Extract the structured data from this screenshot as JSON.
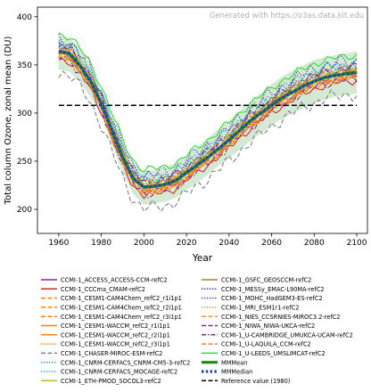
{
  "chart_data": {
    "type": "line",
    "watermark": "Generated with https://o3as.data.kit.edu",
    "xlabel": "Year",
    "ylabel": "Total column Ozone, zonal mean (DU)",
    "xlim": [
      1950,
      2105
    ],
    "ylim": [
      175,
      410
    ],
    "xticks": [
      1960,
      1980,
      2000,
      2020,
      2040,
      2060,
      2080,
      2100
    ],
    "yticks": [
      200,
      250,
      300,
      350,
      400
    ],
    "grid": false,
    "legend_position": "bottom",
    "legend_columns": 2,
    "reference_value": 308,
    "series": [
      {
        "name": "CCMI-1_ACCESS_ACCESS-CCM-refC2",
        "color": "#7b2d8e",
        "dash": "solid",
        "offset": 0,
        "noise": 3
      },
      {
        "name": "CCMI-1_CCCma_CMAM-refC2",
        "color": "#d62728",
        "dash": "solid",
        "offset": -8,
        "noise": 3
      },
      {
        "name": "CCMI-1_CESM1-CAM4Chem_refC2_r1i1p1",
        "color": "#ff7f0e",
        "dash": "dashed",
        "offset": 3,
        "noise": 4
      },
      {
        "name": "CCMI-1_CESM1-CAM4Chem_refC2_r2i1p1",
        "color": "#ff7f0e",
        "dash": "dashed",
        "offset": 1,
        "noise": 4
      },
      {
        "name": "CCMI-1_CESM1-CAM4Chem_refC2_r3i1p1",
        "color": "#ff7f0e",
        "dash": "dashed",
        "offset": -1,
        "noise": 4
      },
      {
        "name": "CCMI-1_CESM1-WACCM_refC2_r1i1p1",
        "color": "#ff7f0e",
        "dash": "solid",
        "offset": -4,
        "noise": 3
      },
      {
        "name": "CCMI-1_CESM1-WACCM_refC2_r2i1p1",
        "color": "#ff7f0e",
        "dash": "solid",
        "offset": -5,
        "noise": 3
      },
      {
        "name": "CCMI-1_CESM1-WACCM_refC2_r3i1p1",
        "color": "#ff7f0e",
        "dash": "dotted",
        "offset": -3,
        "noise": 3
      },
      {
        "name": "CCMI-1_CHASER-MIROC-ESM-refC2",
        "color": "#808080",
        "dash": "dashed",
        "offset": -22,
        "noise": 5
      },
      {
        "name": "CCMI-1_CNRM-CERFACS_CNRM-CM5-3-refC2",
        "color": "#17a2b8",
        "dash": "dotted",
        "offset": 10,
        "noise": 4
      },
      {
        "name": "CCMI-1_CNRM-CERFACS_MOCAGE-refC2",
        "color": "#17becf",
        "dash": "dotted",
        "offset": 6,
        "noise": 4
      },
      {
        "name": "CCMI-1_ETH-PMOD_SOCOL3-refC2",
        "color": "#bcbd22",
        "dash": "solid",
        "offset": 2,
        "noise": 3
      },
      {
        "name": "CCMI-1_GSFC_GEOSCCM-refC2",
        "color": "#9c8a2e",
        "dash": "solid",
        "offset": 4,
        "noise": 3
      },
      {
        "name": "CCMI-1_MESSy_EMAC-L90MA-refC2",
        "color": "#3b3bbf",
        "dash": "dotted",
        "offset": 12,
        "noise": 6
      },
      {
        "name": "CCMI-1_MOHC_HadGEM3-ES-refC2",
        "color": "#6a3d9a",
        "dash": "dotted",
        "offset": 8,
        "noise": 4
      },
      {
        "name": "CCMI-1_MRI_ESM1r1-refC2",
        "color": "#e89b3c",
        "dash": "dotted",
        "offset": 0,
        "noise": 4
      },
      {
        "name": "CCMI-1_NIES_CCSRNIES-MIROC3.2-refC2",
        "color": "#e89b3c",
        "dash": "dashed",
        "offset": -2,
        "noise": 4
      },
      {
        "name": "CCMI-1_NIWA_NIWA-UKCA-refC2",
        "color": "#7b2d8e",
        "dash": "dashed",
        "offset": 5,
        "noise": 4
      },
      {
        "name": "CCMI-1_U-CAMBRIDGE_UMUKCA-UCAM-refC2",
        "color": "#7b2d8e",
        "dash": "dashdot",
        "offset": -6,
        "noise": 4
      },
      {
        "name": "CCMI-1_U-LAQUILA_CCM-refC2",
        "color": "#e8823c",
        "dash": "dashed",
        "offset": -1,
        "noise": 4
      },
      {
        "name": "CCMI-1_U-LEEDS_UMSLIMCAT-refC2",
        "color": "#33dd33",
        "dash": "solid",
        "offset": 18,
        "noise": 3
      },
      {
        "name": "MMMean",
        "color": "#1a8a1a",
        "dash": "solid",
        "thick": true
      },
      {
        "name": "MMMedian",
        "color": "#1f3fbf",
        "dash": "dots",
        "thick": true
      },
      {
        "name": "Reference value (1980)",
        "color": "#000000",
        "dash": "dashed"
      }
    ],
    "mean": {
      "x": [
        1960,
        1965,
        1970,
        1975,
        1980,
        1985,
        1990,
        1995,
        2000,
        2005,
        2010,
        2015,
        2020,
        2025,
        2030,
        2035,
        2040,
        2045,
        2050,
        2055,
        2060,
        2065,
        2070,
        2075,
        2080,
        2085,
        2090,
        2095,
        2100
      ],
      "y": [
        364,
        362,
        349,
        333,
        310,
        282,
        254,
        232,
        223,
        224,
        226,
        230,
        238,
        246,
        254,
        263,
        272,
        282,
        292,
        300,
        308,
        316,
        322,
        328,
        333,
        337,
        339,
        341,
        342
      ]
    },
    "band": {
      "x": [
        1960,
        1965,
        1970,
        1975,
        1980,
        1985,
        1990,
        1995,
        2000,
        2005,
        2010,
        2015,
        2020,
        2025,
        2030,
        2035,
        2040,
        2045,
        2050,
        2055,
        2060,
        2065,
        2070,
        2075,
        2080,
        2085,
        2090,
        2095,
        2100
      ],
      "upper": [
        380,
        378,
        367,
        350,
        322,
        296,
        270,
        248,
        240,
        241,
        244,
        248,
        256,
        265,
        274,
        283,
        292,
        302,
        312,
        321,
        330,
        338,
        344,
        350,
        355,
        358,
        360,
        362,
        364
      ],
      "lower": [
        345,
        343,
        332,
        316,
        298,
        268,
        238,
        216,
        205,
        206,
        208,
        212,
        220,
        228,
        236,
        245,
        253,
        262,
        271,
        279,
        287,
        294,
        300,
        305,
        310,
        314,
        317,
        319,
        320
      ]
    }
  }
}
